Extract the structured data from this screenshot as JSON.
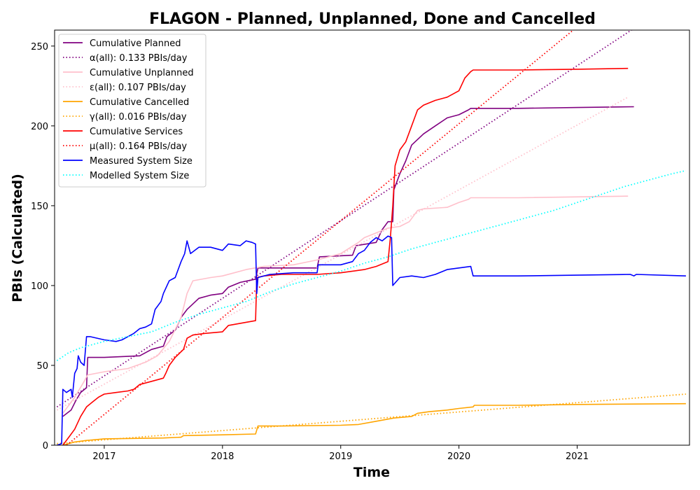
{
  "chart_data": {
    "type": "line",
    "title": "FLAGON - Planned, Unplanned, Done  and Cancelled",
    "xlabel": "Time",
    "ylabel": "PBIs (Calculated)",
    "xlim": [
      2016.58,
      2021.95
    ],
    "ylim": [
      0,
      260
    ],
    "x_ticks": [
      2017,
      2018,
      2019,
      2020,
      2021
    ],
    "x_tick_labels": [
      "2017",
      "2018",
      "2019",
      "2020",
      "2021"
    ],
    "y_ticks": [
      0,
      50,
      100,
      150,
      200,
      250
    ],
    "y_tick_labels": [
      "0",
      "50",
      "100",
      "150",
      "200",
      "250"
    ],
    "grid": false,
    "legend_position": "top-left",
    "series": [
      {
        "name": "Cumulative Planned",
        "color": "#800080",
        "style": "solid",
        "points": [
          [
            2016.65,
            18
          ],
          [
            2016.72,
            22
          ],
          [
            2016.76,
            28
          ],
          [
            2016.8,
            33
          ],
          [
            2016.85,
            36
          ],
          [
            2016.86,
            55
          ],
          [
            2017.0,
            55
          ],
          [
            2017.3,
            56
          ],
          [
            2017.4,
            60
          ],
          [
            2017.5,
            62
          ],
          [
            2017.53,
            68
          ],
          [
            2017.6,
            72
          ],
          [
            2017.65,
            80
          ],
          [
            2017.7,
            85
          ],
          [
            2017.8,
            92
          ],
          [
            2017.9,
            94
          ],
          [
            2018.0,
            95
          ],
          [
            2018.05,
            99
          ],
          [
            2018.15,
            102
          ],
          [
            2018.28,
            104
          ],
          [
            2018.3,
            111
          ],
          [
            2018.8,
            111
          ],
          [
            2018.82,
            118
          ],
          [
            2019.1,
            119
          ],
          [
            2019.13,
            125
          ],
          [
            2019.3,
            127
          ],
          [
            2019.35,
            135
          ],
          [
            2019.4,
            140
          ],
          [
            2019.44,
            140
          ],
          [
            2019.45,
            160
          ],
          [
            2019.5,
            170
          ],
          [
            2019.55,
            178
          ],
          [
            2019.6,
            188
          ],
          [
            2019.7,
            195
          ],
          [
            2019.8,
            200
          ],
          [
            2019.9,
            205
          ],
          [
            2020.0,
            207
          ],
          [
            2020.08,
            210
          ],
          [
            2020.1,
            211
          ],
          [
            2020.5,
            211
          ],
          [
            2021.0,
            211.5
          ],
          [
            2021.48,
            212
          ]
        ]
      },
      {
        "name": "α(all): 0.133 PBIs/day",
        "color": "#800080",
        "style": "dotted",
        "points": [
          [
            2016.6,
            24
          ],
          [
            2021.5,
            262
          ]
        ]
      },
      {
        "name": "Cumulative Unplanned",
        "color": "#ffc0cb",
        "style": "solid",
        "points": [
          [
            2016.65,
            20
          ],
          [
            2016.75,
            30
          ],
          [
            2016.83,
            40
          ],
          [
            2016.86,
            44
          ],
          [
            2017.0,
            46
          ],
          [
            2017.2,
            48
          ],
          [
            2017.35,
            52
          ],
          [
            2017.45,
            56
          ],
          [
            2017.55,
            65
          ],
          [
            2017.65,
            80
          ],
          [
            2017.7,
            95
          ],
          [
            2017.75,
            103
          ],
          [
            2017.9,
            105
          ],
          [
            2018.0,
            106
          ],
          [
            2018.1,
            108
          ],
          [
            2018.2,
            110
          ],
          [
            2018.35,
            112
          ],
          [
            2018.6,
            113
          ],
          [
            2018.8,
            116
          ],
          [
            2019.0,
            120
          ],
          [
            2019.15,
            127
          ],
          [
            2019.2,
            130
          ],
          [
            2019.3,
            133
          ],
          [
            2019.4,
            136
          ],
          [
            2019.5,
            137
          ],
          [
            2019.58,
            140
          ],
          [
            2019.65,
            147
          ],
          [
            2019.7,
            148
          ],
          [
            2019.9,
            149
          ],
          [
            2020.0,
            152
          ],
          [
            2020.08,
            154
          ],
          [
            2020.1,
            155
          ],
          [
            2020.5,
            155
          ],
          [
            2021.43,
            156
          ]
        ]
      },
      {
        "name": "ε(all): 0.107 PBIs/day",
        "color": "#ffc0cb",
        "style": "dotted",
        "points": [
          [
            2016.6,
            22
          ],
          [
            2021.43,
            218
          ]
        ]
      },
      {
        "name": "Cumulative Cancelled",
        "color": "#ffa500",
        "style": "solid",
        "points": [
          [
            2016.65,
            0
          ],
          [
            2016.75,
            2
          ],
          [
            2016.85,
            3
          ],
          [
            2017.0,
            4
          ],
          [
            2017.5,
            4.5
          ],
          [
            2017.65,
            5
          ],
          [
            2017.67,
            6
          ],
          [
            2018.0,
            6.5
          ],
          [
            2018.28,
            7
          ],
          [
            2018.3,
            12
          ],
          [
            2018.5,
            12
          ],
          [
            2019.0,
            12.5
          ],
          [
            2019.15,
            13
          ],
          [
            2019.3,
            15
          ],
          [
            2019.45,
            17
          ],
          [
            2019.6,
            18
          ],
          [
            2019.65,
            20
          ],
          [
            2019.75,
            21
          ],
          [
            2019.9,
            22
          ],
          [
            2020.0,
            23
          ],
          [
            2020.12,
            24
          ],
          [
            2020.13,
            25
          ],
          [
            2020.5,
            25
          ],
          [
            2021.0,
            25.5
          ],
          [
            2021.92,
            26
          ]
        ]
      },
      {
        "name": "γ(all): 0.016 PBIs/day",
        "color": "#ffa500",
        "style": "dotted",
        "points": [
          [
            2016.6,
            1
          ],
          [
            2021.92,
            32
          ]
        ]
      },
      {
        "name": "Cumulative Services",
        "color": "#ff0000",
        "style": "solid",
        "points": [
          [
            2016.65,
            0
          ],
          [
            2016.7,
            5
          ],
          [
            2016.75,
            10
          ],
          [
            2016.8,
            18
          ],
          [
            2016.85,
            24
          ],
          [
            2016.9,
            27
          ],
          [
            2016.95,
            30
          ],
          [
            2017.0,
            32
          ],
          [
            2017.1,
            33
          ],
          [
            2017.2,
            34
          ],
          [
            2017.25,
            35
          ],
          [
            2017.3,
            38
          ],
          [
            2017.4,
            40
          ],
          [
            2017.5,
            42
          ],
          [
            2017.52,
            45
          ],
          [
            2017.55,
            50
          ],
          [
            2017.6,
            55
          ],
          [
            2017.67,
            60
          ],
          [
            2017.7,
            67
          ],
          [
            2017.75,
            69
          ],
          [
            2017.85,
            70
          ],
          [
            2018.0,
            71
          ],
          [
            2018.05,
            75
          ],
          [
            2018.2,
            77
          ],
          [
            2018.28,
            78
          ],
          [
            2018.29,
            105
          ],
          [
            2018.35,
            106
          ],
          [
            2018.5,
            107
          ],
          [
            2018.8,
            107
          ],
          [
            2019.0,
            108
          ],
          [
            2019.2,
            110
          ],
          [
            2019.3,
            112
          ],
          [
            2019.4,
            115
          ],
          [
            2019.42,
            130
          ],
          [
            2019.44,
            150
          ],
          [
            2019.46,
            175
          ],
          [
            2019.5,
            185
          ],
          [
            2019.55,
            190
          ],
          [
            2019.6,
            200
          ],
          [
            2019.65,
            210
          ],
          [
            2019.7,
            213
          ],
          [
            2019.8,
            216
          ],
          [
            2019.9,
            218
          ],
          [
            2020.0,
            222
          ],
          [
            2020.05,
            230
          ],
          [
            2020.1,
            234
          ],
          [
            2020.12,
            235
          ],
          [
            2020.5,
            235
          ],
          [
            2021.0,
            235.5
          ],
          [
            2021.43,
            236
          ]
        ]
      },
      {
        "name": "μ(all): 0.164 PBIs/day",
        "color": "#ff0000",
        "style": "dotted",
        "points": [
          [
            2016.6,
            -5
          ],
          [
            2021.0,
            262
          ]
        ]
      },
      {
        "name": "Measured System Size",
        "color": "#0000ff",
        "style": "solid",
        "points": [
          [
            2016.6,
            0
          ],
          [
            2016.64,
            1
          ],
          [
            2016.65,
            35
          ],
          [
            2016.68,
            33
          ],
          [
            2016.72,
            35
          ],
          [
            2016.73,
            30
          ],
          [
            2016.75,
            45
          ],
          [
            2016.77,
            48
          ],
          [
            2016.78,
            56
          ],
          [
            2016.8,
            52
          ],
          [
            2016.83,
            50
          ],
          [
            2016.85,
            68
          ],
          [
            2016.88,
            68
          ],
          [
            2017.0,
            66
          ],
          [
            2017.1,
            65
          ],
          [
            2017.15,
            66
          ],
          [
            2017.2,
            68
          ],
          [
            2017.25,
            70
          ],
          [
            2017.3,
            73
          ],
          [
            2017.35,
            74
          ],
          [
            2017.4,
            76
          ],
          [
            2017.43,
            85
          ],
          [
            2017.48,
            90
          ],
          [
            2017.5,
            95
          ],
          [
            2017.55,
            103
          ],
          [
            2017.6,
            105
          ],
          [
            2017.65,
            115
          ],
          [
            2017.68,
            120
          ],
          [
            2017.7,
            128
          ],
          [
            2017.73,
            120
          ],
          [
            2017.8,
            124
          ],
          [
            2017.9,
            124
          ],
          [
            2018.0,
            122
          ],
          [
            2018.05,
            126
          ],
          [
            2018.15,
            125
          ],
          [
            2018.2,
            128
          ],
          [
            2018.25,
            127
          ],
          [
            2018.28,
            126
          ],
          [
            2018.29,
            95
          ],
          [
            2018.3,
            105
          ],
          [
            2018.4,
            107
          ],
          [
            2018.6,
            108
          ],
          [
            2018.8,
            108
          ],
          [
            2018.81,
            113
          ],
          [
            2019.0,
            113
          ],
          [
            2019.1,
            115
          ],
          [
            2019.15,
            120
          ],
          [
            2019.2,
            122
          ],
          [
            2019.25,
            127
          ],
          [
            2019.3,
            130
          ],
          [
            2019.35,
            128
          ],
          [
            2019.4,
            131
          ],
          [
            2019.43,
            130
          ],
          [
            2019.44,
            100
          ],
          [
            2019.5,
            105
          ],
          [
            2019.6,
            106
          ],
          [
            2019.7,
            105
          ],
          [
            2019.8,
            107
          ],
          [
            2019.9,
            110
          ],
          [
            2020.0,
            111
          ],
          [
            2020.1,
            112
          ],
          [
            2020.12,
            106
          ],
          [
            2020.5,
            106
          ],
          [
            2021.0,
            106.5
          ],
          [
            2021.45,
            107
          ],
          [
            2021.48,
            106
          ],
          [
            2021.5,
            107
          ],
          [
            2021.92,
            106
          ]
        ]
      },
      {
        "name": "Modelled System Size",
        "color": "#00ffff",
        "style": "dotted",
        "points": [
          [
            2016.6,
            53
          ],
          [
            2016.7,
            58
          ],
          [
            2016.8,
            61
          ],
          [
            2016.9,
            63
          ],
          [
            2017.0,
            65
          ],
          [
            2017.2,
            68
          ],
          [
            2017.4,
            71
          ],
          [
            2017.6,
            77
          ],
          [
            2017.8,
            82
          ],
          [
            2018.0,
            86
          ],
          [
            2018.2,
            90
          ],
          [
            2018.4,
            96
          ],
          [
            2018.6,
            101
          ],
          [
            2018.8,
            105
          ],
          [
            2019.0,
            109
          ],
          [
            2019.2,
            114
          ],
          [
            2019.4,
            118
          ],
          [
            2019.6,
            123
          ],
          [
            2019.8,
            127
          ],
          [
            2020.0,
            131
          ],
          [
            2020.2,
            135
          ],
          [
            2020.4,
            139
          ],
          [
            2020.6,
            143
          ],
          [
            2020.8,
            147
          ],
          [
            2021.0,
            152
          ],
          [
            2021.2,
            157
          ],
          [
            2021.4,
            162
          ],
          [
            2021.6,
            166
          ],
          [
            2021.8,
            170
          ],
          [
            2021.92,
            172
          ]
        ]
      }
    ]
  }
}
